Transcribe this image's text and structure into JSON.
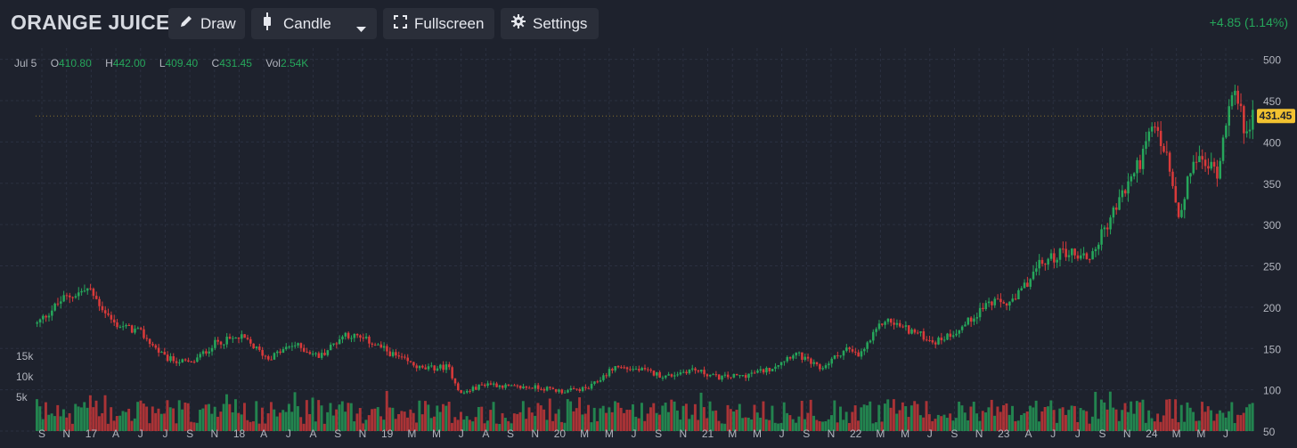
{
  "toolbar": {
    "title": "ORANGE JUICE",
    "draw_label": "Draw",
    "candle_label": "Candle",
    "fullscreen_label": "Fullscreen",
    "settings_label": "Settings",
    "change": "+4.85 (1.14%)"
  },
  "ohlc": {
    "date": "Jul 5",
    "o_label": "O",
    "o": "410.80",
    "h_label": "H",
    "h": "442.00",
    "l_label": "L",
    "l": "409.40",
    "c_label": "C",
    "c": "431.45",
    "vol_label": "Vol",
    "vol": "2.54K"
  },
  "colors": {
    "up": "#26a65b",
    "down": "#d93a3a",
    "background": "#1e222d",
    "last_price_bg": "#f2c230"
  },
  "chart_data": {
    "type": "candlestick",
    "price_axis": {
      "ticks": [
        50,
        100,
        150,
        200,
        250,
        300,
        350,
        400,
        450,
        500
      ],
      "range": [
        50,
        505
      ]
    },
    "volume_axis": {
      "tick_labels": [
        "5k",
        "10k",
        "15k"
      ],
      "tick_values": [
        5000,
        10000,
        15000
      ]
    },
    "last_price": "431.45",
    "x_ticks": [
      "S",
      "N",
      "17",
      "A",
      "J",
      "J",
      "S",
      "N",
      "18",
      "A",
      "J",
      "A",
      "S",
      "N",
      "19",
      "M",
      "M",
      "J",
      "A",
      "S",
      "N",
      "20",
      "M",
      "M",
      "J",
      "S",
      "N",
      "21",
      "M",
      "M",
      "J",
      "S",
      "N",
      "22",
      "M",
      "M",
      "J",
      "S",
      "N",
      "23",
      "A",
      "J",
      "J",
      "S",
      "N",
      "24",
      "M",
      "M",
      "J"
    ],
    "x_range": [
      "2016-08",
      "2024-07"
    ],
    "grid": true,
    "price_path": [
      [
        "2016-08",
        180
      ],
      [
        "2016-10",
        210
      ],
      [
        "2016-12",
        222
      ],
      [
        "2017-02",
        180
      ],
      [
        "2017-04",
        170
      ],
      [
        "2017-06",
        138
      ],
      [
        "2017-08",
        132
      ],
      [
        "2017-10",
        158
      ],
      [
        "2017-12",
        163
      ],
      [
        "2018-02",
        138
      ],
      [
        "2018-04",
        155
      ],
      [
        "2018-06",
        140
      ],
      [
        "2018-08",
        168
      ],
      [
        "2018-10",
        158
      ],
      [
        "2018-12",
        140
      ],
      [
        "2019-02",
        125
      ],
      [
        "2019-04",
        128
      ],
      [
        "2019-05",
        95
      ],
      [
        "2019-07",
        108
      ],
      [
        "2019-09",
        103
      ],
      [
        "2019-11",
        103
      ],
      [
        "2020-01",
        98
      ],
      [
        "2020-03",
        102
      ],
      [
        "2020-05",
        128
      ],
      [
        "2020-07",
        124
      ],
      [
        "2020-09",
        116
      ],
      [
        "2020-11",
        125
      ],
      [
        "2021-01",
        115
      ],
      [
        "2021-03",
        117
      ],
      [
        "2021-05",
        125
      ],
      [
        "2021-07",
        145
      ],
      [
        "2021-09",
        125
      ],
      [
        "2021-11",
        150
      ],
      [
        "2021-12",
        140
      ],
      [
        "2022-02",
        185
      ],
      [
        "2022-04",
        172
      ],
      [
        "2022-06",
        158
      ],
      [
        "2022-08",
        175
      ],
      [
        "2022-10",
        205
      ],
      [
        "2022-12",
        205
      ],
      [
        "2023-02",
        250
      ],
      [
        "2023-04",
        268
      ],
      [
        "2023-06",
        260
      ],
      [
        "2023-08",
        320
      ],
      [
        "2023-10",
        380
      ],
      [
        "2023-11",
        420
      ],
      [
        "2023-12",
        380
      ],
      [
        "2024-01",
        300
      ],
      [
        "2024-02",
        380
      ],
      [
        "2024-04",
        365
      ],
      [
        "2024-05",
        470
      ],
      [
        "2024-06",
        420
      ],
      [
        "2024-07",
        431
      ]
    ]
  }
}
